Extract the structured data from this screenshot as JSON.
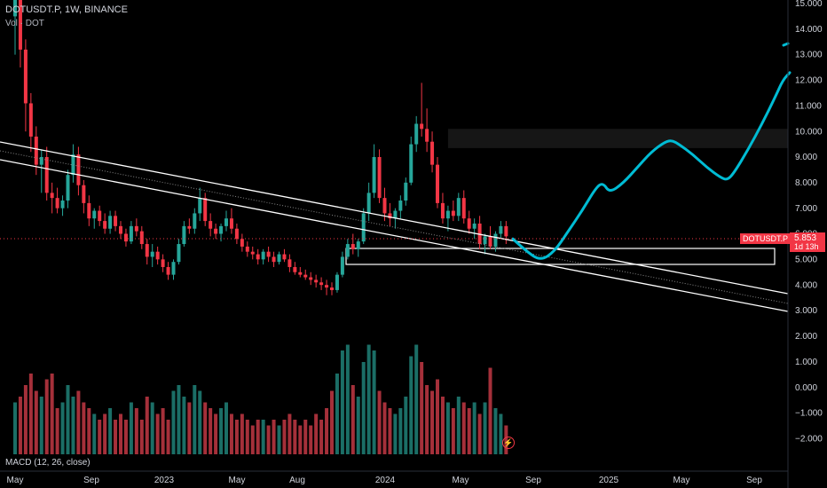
{
  "header": {
    "symbol_line": "DOTUSDT.P, 1W, BINANCE",
    "volume_label": "Vol · DOT",
    "macd_label": "MACD (12, 26, close)"
  },
  "price_tag": {
    "symbol": "DOTUSDT.P",
    "value": "5.853",
    "countdown": "1d 13h"
  },
  "colors": {
    "up": "#26a69a",
    "down": "#f23645",
    "projection": "#00bcd4",
    "channel": "#ffffff",
    "zone": "#1c1c1c"
  },
  "icons": {
    "alert": "bolt-icon"
  },
  "chart_data": {
    "type": "candlestick",
    "y_ticks": [
      "15.000",
      "14.000",
      "13.000",
      "12.000",
      "11.000",
      "10.000",
      "9.000",
      "8.000",
      "7.000",
      "6.000",
      "5.000",
      "4.000",
      "3.000",
      "2.000",
      "1.000",
      "0.000",
      "−1.000",
      "−2.000"
    ],
    "x_ticks": [
      "May",
      "Sep",
      "2023",
      "May",
      "Aug",
      "2024",
      "May",
      "Sep",
      "2025",
      "May",
      "Sep"
    ],
    "price_range": [
      3.0,
      15.0
    ],
    "last_price": 5.853,
    "candles": [
      [
        14.5,
        16.0,
        13.0,
        15.4
      ],
      [
        15.4,
        15.6,
        12.5,
        13.2
      ],
      [
        13.2,
        13.6,
        10.0,
        11.1
      ],
      [
        11.1,
        11.5,
        9.2,
        9.8
      ],
      [
        9.8,
        10.2,
        8.3,
        8.7
      ],
      [
        8.7,
        9.3,
        7.6,
        9.0
      ],
      [
        9.0,
        9.4,
        7.3,
        7.6
      ],
      [
        7.6,
        8.0,
        6.8,
        7.4
      ],
      [
        7.4,
        7.8,
        6.8,
        7.0
      ],
      [
        7.0,
        7.5,
        6.7,
        7.3
      ],
      [
        7.3,
        8.5,
        7.0,
        8.3
      ],
      [
        8.3,
        9.5,
        8.0,
        9.1
      ],
      [
        9.1,
        9.4,
        7.5,
        7.9
      ],
      [
        7.9,
        8.1,
        6.8,
        7.2
      ],
      [
        7.2,
        7.5,
        6.3,
        6.6
      ],
      [
        6.6,
        7.0,
        6.2,
        6.9
      ],
      [
        6.9,
        7.1,
        6.3,
        6.5
      ],
      [
        6.5,
        6.8,
        6.0,
        6.2
      ],
      [
        6.2,
        6.9,
        6.0,
        6.7
      ],
      [
        6.7,
        6.9,
        6.1,
        6.3
      ],
      [
        6.3,
        6.5,
        5.8,
        6.0
      ],
      [
        6.0,
        6.2,
        5.5,
        5.7
      ],
      [
        5.7,
        6.5,
        5.6,
        6.3
      ],
      [
        6.3,
        6.6,
        5.9,
        6.1
      ],
      [
        6.1,
        6.3,
        5.4,
        5.6
      ],
      [
        5.6,
        5.8,
        4.8,
        5.1
      ],
      [
        5.1,
        5.6,
        4.7,
        5.3
      ],
      [
        5.3,
        5.5,
        4.8,
        5.0
      ],
      [
        5.0,
        5.2,
        4.5,
        4.7
      ],
      [
        4.7,
        4.9,
        4.2,
        4.4
      ],
      [
        4.4,
        5.0,
        4.2,
        4.9
      ],
      [
        4.9,
        5.8,
        4.8,
        5.6
      ],
      [
        5.6,
        6.5,
        5.5,
        6.3
      ],
      [
        6.3,
        6.6,
        6.0,
        6.2
      ],
      [
        6.2,
        7.0,
        6.0,
        6.8
      ],
      [
        6.8,
        7.8,
        6.5,
        7.4
      ],
      [
        7.4,
        7.6,
        6.3,
        6.5
      ],
      [
        6.5,
        6.8,
        5.9,
        6.2
      ],
      [
        6.2,
        6.4,
        5.8,
        6.0
      ],
      [
        6.0,
        6.4,
        5.7,
        6.3
      ],
      [
        6.3,
        6.9,
        6.1,
        6.6
      ],
      [
        6.6,
        7.0,
        6.0,
        6.2
      ],
      [
        6.2,
        6.4,
        5.6,
        5.8
      ],
      [
        5.8,
        6.0,
        5.3,
        5.5
      ],
      [
        5.5,
        5.7,
        5.1,
        5.3
      ],
      [
        5.3,
        5.5,
        5.0,
        5.2
      ],
      [
        5.2,
        5.4,
        4.8,
        5.0
      ],
      [
        5.0,
        5.4,
        4.8,
        5.3
      ],
      [
        5.3,
        5.5,
        4.9,
        5.1
      ],
      [
        5.1,
        5.3,
        4.7,
        4.9
      ],
      [
        4.9,
        5.3,
        4.8,
        5.2
      ],
      [
        5.2,
        5.4,
        4.9,
        5.0
      ],
      [
        5.0,
        5.2,
        4.5,
        4.7
      ],
      [
        4.7,
        4.9,
        4.4,
        4.5
      ],
      [
        4.5,
        4.7,
        4.3,
        4.4
      ],
      [
        4.4,
        4.6,
        4.2,
        4.3
      ],
      [
        4.3,
        4.5,
        4.0,
        4.2
      ],
      [
        4.2,
        4.4,
        3.9,
        4.1
      ],
      [
        4.1,
        4.3,
        3.8,
        4.0
      ],
      [
        4.0,
        4.2,
        3.6,
        3.9
      ],
      [
        3.9,
        4.1,
        3.6,
        3.8
      ],
      [
        3.8,
        4.5,
        3.7,
        4.4
      ],
      [
        4.4,
        5.3,
        4.3,
        5.1
      ],
      [
        5.1,
        5.8,
        5.0,
        5.6
      ],
      [
        5.6,
        6.0,
        5.2,
        5.4
      ],
      [
        5.4,
        5.8,
        5.1,
        5.7
      ],
      [
        5.7,
        7.0,
        5.6,
        6.8
      ],
      [
        6.8,
        8.0,
        6.5,
        7.6
      ],
      [
        7.6,
        9.5,
        7.4,
        9.0
      ],
      [
        9.0,
        9.3,
        7.2,
        7.4
      ],
      [
        7.4,
        7.8,
        6.5,
        6.8
      ],
      [
        6.8,
        7.2,
        6.3,
        6.6
      ],
      [
        6.6,
        7.0,
        6.2,
        6.9
      ],
      [
        6.9,
        7.5,
        6.6,
        7.3
      ],
      [
        7.3,
        8.2,
        7.1,
        8.0
      ],
      [
        8.0,
        9.8,
        7.9,
        9.5
      ],
      [
        9.5,
        10.6,
        9.2,
        10.3
      ],
      [
        10.3,
        11.9,
        9.8,
        10.1
      ],
      [
        10.1,
        10.9,
        9.2,
        9.6
      ],
      [
        9.6,
        10.0,
        8.4,
        8.7
      ],
      [
        8.7,
        9.0,
        7.0,
        7.2
      ],
      [
        7.2,
        7.6,
        6.4,
        6.6
      ],
      [
        6.6,
        7.1,
        6.1,
        6.9
      ],
      [
        6.9,
        7.3,
        6.5,
        6.7
      ],
      [
        6.7,
        7.6,
        6.5,
        7.4
      ],
      [
        7.4,
        7.7,
        6.4,
        6.6
      ],
      [
        6.6,
        6.9,
        6.0,
        6.2
      ],
      [
        6.2,
        6.6,
        5.8,
        6.4
      ],
      [
        6.4,
        6.7,
        5.4,
        5.6
      ],
      [
        5.6,
        6.0,
        5.2,
        5.9
      ],
      [
        5.9,
        6.3,
        5.4,
        5.5
      ],
      [
        5.5,
        6.1,
        5.3,
        6.0
      ],
      [
        6.0,
        6.5,
        5.8,
        6.3
      ],
      [
        6.3,
        6.5,
        5.6,
        5.9
      ]
    ],
    "projection": [
      [
        0,
        5.8
      ],
      [
        4,
        5.3
      ],
      [
        8,
        4.95
      ],
      [
        12,
        5.3
      ],
      [
        16,
        6.1
      ],
      [
        20,
        6.9
      ],
      [
        24,
        7.8
      ],
      [
        26,
        8.0
      ],
      [
        28,
        7.6
      ],
      [
        32,
        8.0
      ],
      [
        36,
        8.6
      ],
      [
        40,
        9.2
      ],
      [
        44,
        9.6
      ],
      [
        46,
        9.65
      ],
      [
        48,
        9.5
      ],
      [
        52,
        9.1
      ],
      [
        56,
        8.6
      ],
      [
        60,
        8.2
      ],
      [
        62,
        8.1
      ],
      [
        64,
        8.4
      ],
      [
        68,
        9.3
      ],
      [
        72,
        10.3
      ],
      [
        76,
        11.4
      ],
      [
        78,
        12.0
      ],
      [
        80,
        12.3
      ]
    ],
    "channel_lines": [
      {
        "from": [
          0,
          9.5
        ],
        "to": [
          170,
          3.6
        ]
      },
      {
        "from": [
          0,
          9.1
        ],
        "to": [
          170,
          3.3
        ]
      },
      {
        "from": [
          0,
          8.95
        ],
        "to": [
          170,
          3.0
        ]
      }
    ],
    "zones": [
      {
        "name": "resistance-zone",
        "top": 10.1,
        "bottom": 9.35,
        "from": 82,
        "to": 170
      },
      {
        "name": "support-zone",
        "top": 5.5,
        "bottom": 4.85,
        "from": 64,
        "to": 170
      }
    ],
    "volume_series": {
      "name": "Vol",
      "values": [
        0.45,
        0.5,
        0.6,
        0.7,
        0.55,
        0.5,
        0.65,
        0.7,
        0.4,
        0.45,
        0.6,
        0.5,
        0.55,
        0.45,
        0.4,
        0.35,
        0.3,
        0.35,
        0.4,
        0.3,
        0.35,
        0.3,
        0.45,
        0.4,
        0.3,
        0.5,
        0.45,
        0.35,
        0.4,
        0.3,
        0.55,
        0.6,
        0.5,
        0.45,
        0.6,
        0.55,
        0.45,
        0.4,
        0.35,
        0.4,
        0.45,
        0.35,
        0.3,
        0.35,
        0.3,
        0.25,
        0.3,
        0.3,
        0.25,
        0.3,
        0.25,
        0.3,
        0.35,
        0.3,
        0.25,
        0.3,
        0.25,
        0.35,
        0.3,
        0.4,
        0.55,
        0.7,
        0.9,
        0.95,
        0.6,
        0.5,
        0.8,
        0.95,
        0.9,
        0.55,
        0.45,
        0.4,
        0.35,
        0.4,
        0.5,
        0.85,
        0.95,
        0.8,
        0.6,
        0.55,
        0.65,
        0.5,
        0.45,
        0.4,
        0.5,
        0.45,
        0.4,
        0.45,
        0.35,
        0.45,
        0.75,
        0.4,
        0.35,
        0.25
      ],
      "max_value": 1.0
    }
  }
}
